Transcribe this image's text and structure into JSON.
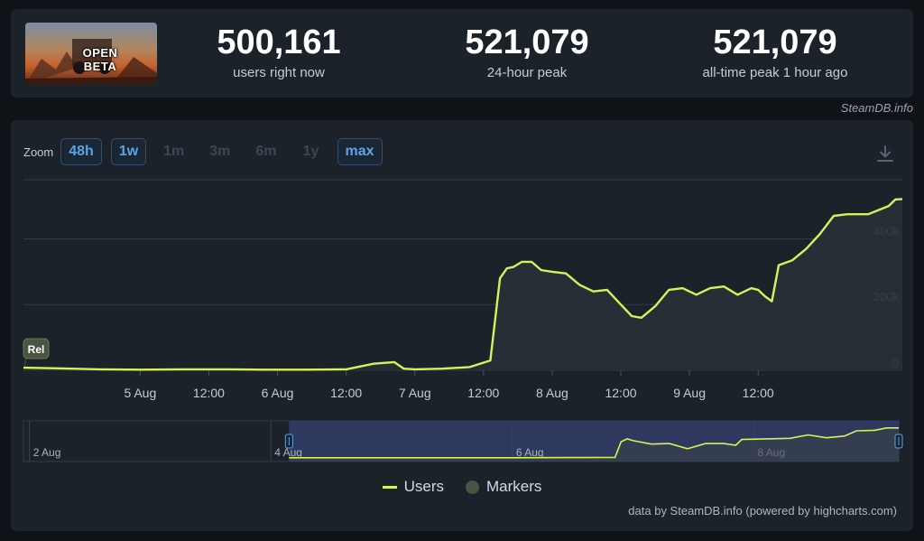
{
  "game": {
    "banner_title": "OPEN BETA"
  },
  "stats": [
    {
      "value": "500,161",
      "label": "users right now"
    },
    {
      "value": "521,079",
      "label": "24-hour peak"
    },
    {
      "value": "521,079",
      "label": "all-time peak 1 hour ago"
    }
  ],
  "watermark": "SteamDB.info",
  "zoom": {
    "label": "Zoom",
    "buttons": [
      {
        "label": "48h",
        "active": true
      },
      {
        "label": "1w",
        "active": true
      },
      {
        "label": "1m",
        "active": false
      },
      {
        "label": "3m",
        "active": false
      },
      {
        "label": "6m",
        "active": false
      },
      {
        "label": "1y",
        "active": false
      },
      {
        "label": "max",
        "active": true
      }
    ]
  },
  "legend": {
    "users": "Users",
    "markers": "Markers"
  },
  "credits": "data by SteamDB.info (powered by highcharts.com)",
  "colors": {
    "line": "#d6f25b",
    "background": "#1c2229",
    "grid": "#323a44",
    "navigator": "#3f4a8a"
  },
  "chart_data": {
    "type": "line",
    "series": [
      {
        "name": "Users",
        "x": [
          4.15,
          4.4,
          4.7,
          5.0,
          5.3,
          5.6,
          5.9,
          6.2,
          6.5,
          6.7,
          6.85,
          6.92,
          7.0,
          7.2,
          7.4,
          7.55,
          7.62,
          7.67,
          7.72,
          7.78,
          7.85,
          7.92,
          8.0,
          8.1,
          8.2,
          8.3,
          8.4,
          8.5,
          8.58,
          8.65,
          8.75,
          8.85,
          8.95,
          9.05,
          9.15,
          9.25,
          9.35,
          9.45,
          9.5,
          9.55,
          9.6,
          9.65,
          9.75,
          9.85,
          9.95,
          10.05,
          10.15,
          10.3,
          10.45,
          10.5,
          10.55
        ],
        "values": [
          8000,
          6000,
          3000,
          2000,
          3000,
          3000,
          2000,
          2000,
          3000,
          20000,
          25000,
          5000,
          3000,
          5000,
          10000,
          30000,
          280000,
          310000,
          315000,
          330000,
          330000,
          305000,
          300000,
          295000,
          260000,
          240000,
          245000,
          200000,
          165000,
          160000,
          195000,
          245000,
          250000,
          230000,
          250000,
          255000,
          230000,
          250000,
          245000,
          225000,
          210000,
          320000,
          335000,
          370000,
          415000,
          470000,
          475000,
          475000,
          500000,
          520000,
          521079
        ]
      }
    ],
    "markers": [
      {
        "label": "Rel",
        "x": 4.15
      }
    ],
    "x_ticks": [
      {
        "x": 5.0,
        "label": "5 Aug"
      },
      {
        "x": 5.5,
        "label": "12:00"
      },
      {
        "x": 6.0,
        "label": "6 Aug"
      },
      {
        "x": 6.5,
        "label": "12:00"
      },
      {
        "x": 7.0,
        "label": "7 Aug"
      },
      {
        "x": 7.5,
        "label": "12:00"
      },
      {
        "x": 8.0,
        "label": "8 Aug"
      },
      {
        "x": 8.5,
        "label": "12:00"
      },
      {
        "x": 9.0,
        "label": "9 Aug"
      },
      {
        "x": 9.5,
        "label": "12:00"
      }
    ],
    "y_ticks": [
      {
        "y": 0,
        "label": "0"
      },
      {
        "y": 200000,
        "label": "200k"
      },
      {
        "y": 400000,
        "label": "400k"
      }
    ],
    "xlim": [
      4.15,
      10.55
    ],
    "ylim": [
      0,
      580000
    ],
    "grid": true,
    "legend_position": "bottom",
    "navigator": {
      "labels": [
        {
          "x": 2.0,
          "label": "2 Aug"
        },
        {
          "x": 4.0,
          "label": "4 Aug"
        },
        {
          "x": 6.0,
          "label": "6 Aug"
        },
        {
          "x": 8.0,
          "label": "8 Aug"
        }
      ],
      "range": [
        1.95,
        9.2
      ],
      "selected": [
        4.15,
        9.2
      ],
      "x": [
        4.15,
        5.8,
        6.0,
        6.85,
        6.9,
        6.95,
        7.0,
        7.15,
        7.3,
        7.45,
        7.6,
        7.75,
        7.85,
        7.9,
        8.1,
        8.3,
        8.45,
        8.6,
        8.75,
        8.85,
        9.0,
        9.1,
        9.2
      ],
      "values": [
        3000,
        3000,
        3000,
        10000,
        280000,
        330000,
        300000,
        240000,
        250000,
        160000,
        250000,
        250000,
        220000,
        320000,
        330000,
        340000,
        400000,
        350000,
        380000,
        470000,
        480000,
        520000,
        521079
      ]
    }
  }
}
